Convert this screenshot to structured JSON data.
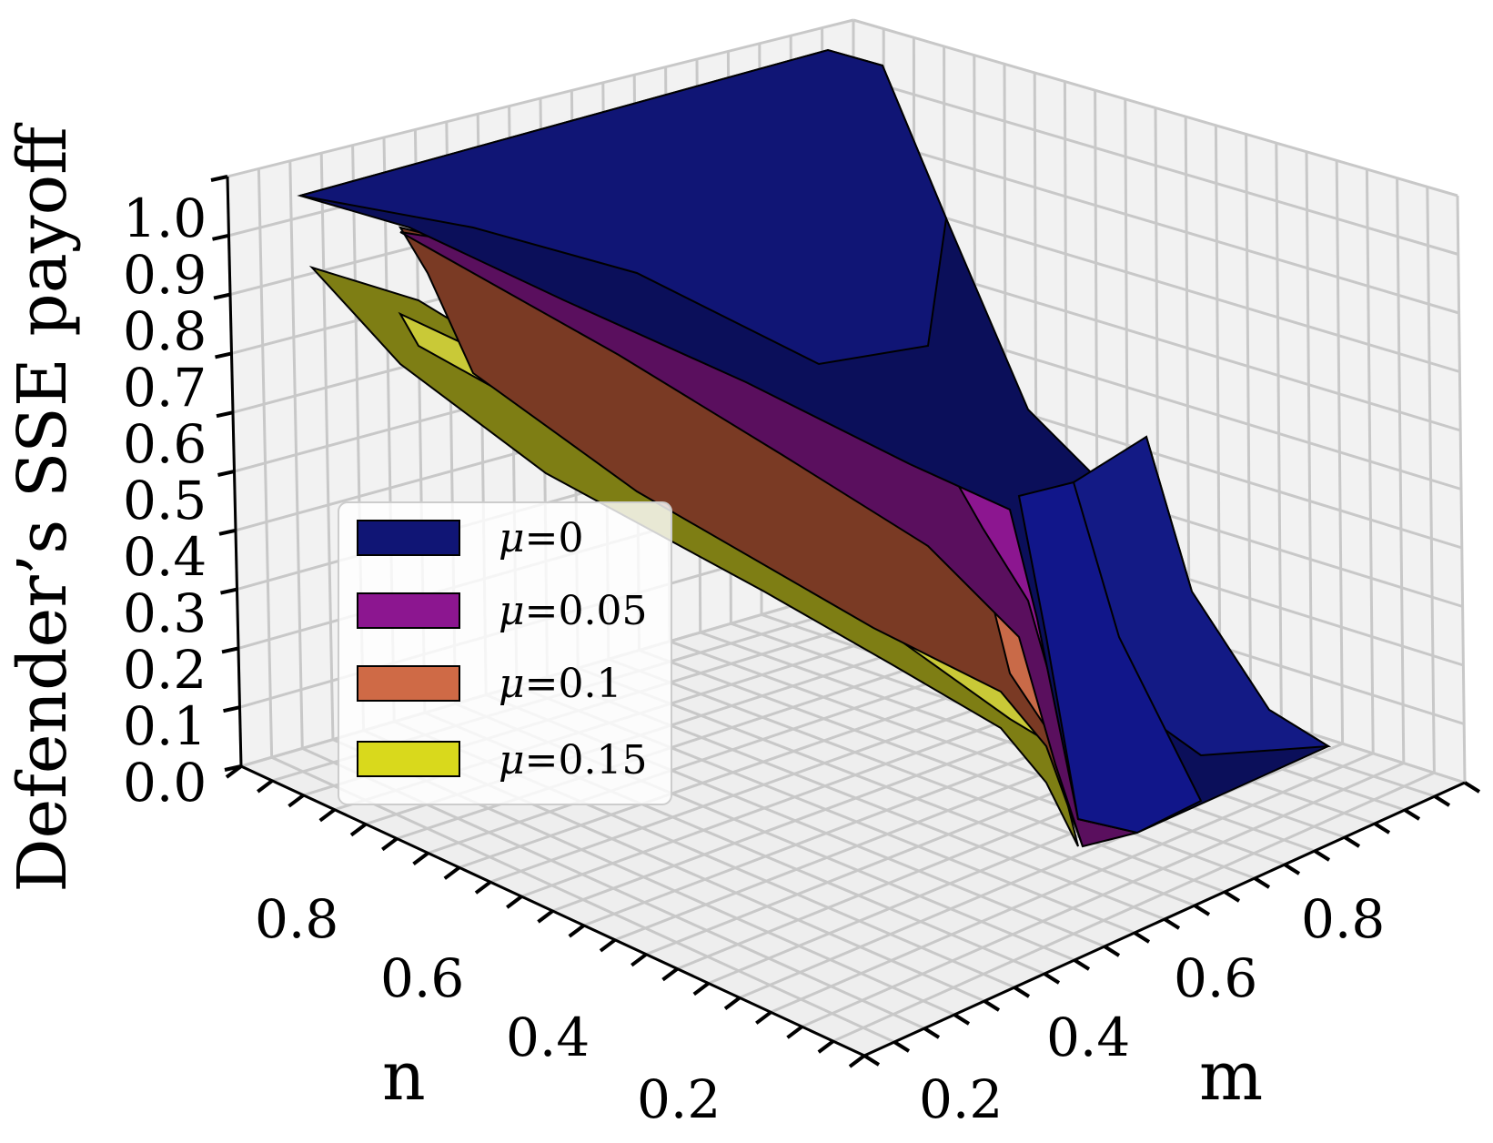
{
  "chart_data": {
    "type": "surface3d",
    "title": "",
    "xlabel": "n",
    "ylabel": "m",
    "zlabel": "Defender’s SSE payoff",
    "x_ticks": [
      "0.2",
      "0.4",
      "0.6",
      "0.8"
    ],
    "y_ticks": [
      "0.2",
      "0.4",
      "0.6",
      "0.8"
    ],
    "z_ticks": [
      "0.0",
      "0.1",
      "0.2",
      "0.3",
      "0.4",
      "0.5",
      "0.6",
      "0.7",
      "0.8",
      "0.9",
      "1.0"
    ],
    "xlim": [
      0.1,
      0.9
    ],
    "ylim": [
      0.1,
      0.9
    ],
    "zlim": [
      0,
      1.0
    ],
    "series": [
      {
        "name": "μ=0",
        "mu_label": "μ",
        "value_label": "=0",
        "mu": 0,
        "color": "#101575",
        "points_n_m_z": [
          [
            0.9,
            0.1,
            1.0
          ],
          [
            0.9,
            0.9,
            1.0
          ],
          [
            0.5,
            0.9,
            1.0
          ],
          [
            0.3,
            0.5,
            0.55
          ],
          [
            0.2,
            0.3,
            0.05
          ],
          [
            0.1,
            0.1,
            0.0
          ],
          [
            0.1,
            0.7,
            0.0
          ],
          [
            0.3,
            0.9,
            0.6
          ]
        ]
      },
      {
        "name": "μ=0.05",
        "mu_label": "μ",
        "value_label": "=0.05",
        "mu": 0.05,
        "color": "#8c1690",
        "points_n_m_z": [
          [
            0.85,
            0.2,
            0.93
          ],
          [
            0.5,
            0.5,
            0.62
          ],
          [
            0.3,
            0.45,
            0.45
          ],
          [
            0.15,
            0.35,
            0.02
          ]
        ]
      },
      {
        "name": "μ=0.1",
        "mu_label": "μ",
        "value_label": "=0.1",
        "mu": 0.1,
        "color": "#cf6a46",
        "points_n_m_z": [
          [
            0.8,
            0.2,
            0.93
          ],
          [
            0.5,
            0.4,
            0.6
          ],
          [
            0.25,
            0.3,
            0.3
          ],
          [
            0.15,
            0.3,
            0.0
          ]
        ]
      },
      {
        "name": "μ=0.15",
        "mu_label": "μ",
        "value_label": "=0.15",
        "mu": 0.15,
        "color": "#d9d91c",
        "points_n_m_z": [
          [
            0.9,
            0.1,
            0.9
          ],
          [
            0.5,
            0.3,
            0.55
          ],
          [
            0.3,
            0.2,
            0.35
          ],
          [
            0.2,
            0.3,
            0.15
          ],
          [
            0.15,
            0.35,
            0.05
          ]
        ]
      }
    ],
    "legend_position": "lower-left"
  }
}
